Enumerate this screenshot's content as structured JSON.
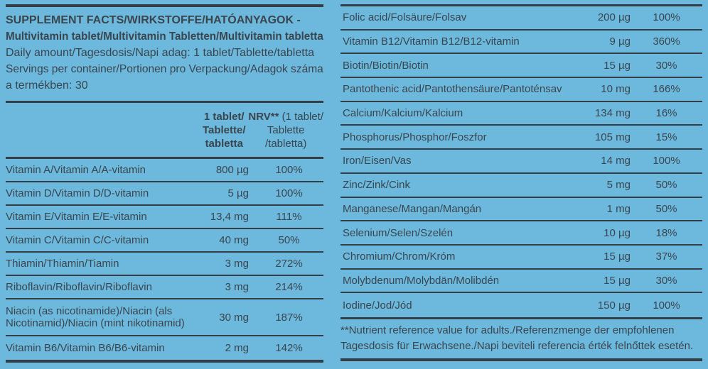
{
  "page": {
    "background_color": "#6db9dd",
    "ink_color": "#3a454e"
  },
  "header": {
    "lines": [
      {
        "text": "SUPPLEMENT FACTS/WIRKSTOFFE/HATÓANYAGOK -",
        "bold": true
      },
      {
        "text": "Multivitamin tablet/Multivitamin Tabletten/Multivitamin tabletta",
        "bold": true
      },
      {
        "text": "Daily amount/Tagesdosis/Napi adag: 1 tablet/Tablette/tabletta",
        "bold": false
      },
      {
        "text": "Servings per container/Portionen pro Verpackung/Adagok száma",
        "bold": false
      },
      {
        "text": "a termékben: 30",
        "bold": false
      }
    ]
  },
  "left_table": {
    "amount_header_lines": [
      "1 tablet/",
      "Tablette/",
      "tabletta"
    ],
    "nrv_header": {
      "bold_part": "NRV**",
      "line1_rest": " (1 tablet/",
      "line2": "Tablette",
      "line3": "/tabletta)"
    },
    "rows": [
      {
        "label": "Vitamin A/Vitamin A/A-vitamin",
        "amount": "800 µg",
        "nrv": "100%"
      },
      {
        "label": "Vitamin D/Vitamin D/D-vitamin",
        "amount": "5 µg",
        "nrv": "100%"
      },
      {
        "label": "Vitamin E/Vitamin E/E-vitamin",
        "amount": "13,4 mg",
        "nrv": "111%"
      },
      {
        "label": "Vitamin C/Vitamin C/C-vitamin",
        "amount": "40 mg",
        "nrv": "50%"
      },
      {
        "label": "Thiamin/Thiamin/Tiamin",
        "amount": "3 mg",
        "nrv": "272%"
      },
      {
        "label": "Riboflavin/Riboflavin/Riboflavin",
        "amount": "3 mg",
        "nrv": "214%"
      },
      {
        "label": "Niacin (as nicotinamide)/Niacin (als\nNicotinamid)/Niacin (mint nikotinamid)",
        "amount": "30 mg",
        "nrv": "187%"
      },
      {
        "label": "Vitamin B6/Vitamin B6/B6-vitamin",
        "amount": "2 mg",
        "nrv": "142%"
      }
    ]
  },
  "right_table": {
    "rows": [
      {
        "label": "Folic acid/Folsäure/Folsav",
        "amount": "200 µg",
        "nrv": "100%"
      },
      {
        "label": "Vitamin B12/Vitamin B12/B12-vitamin",
        "amount": "9 µg",
        "nrv": "360%"
      },
      {
        "label": "Biotin/Biotin/Biotin",
        "amount": "15 µg",
        "nrv": "30%"
      },
      {
        "label": "Pantothenic acid/Pantothensäure/Pantoténsav",
        "amount": "10 mg",
        "nrv": "166%"
      },
      {
        "label": "Calcium/Kalcium/Kalcium",
        "amount": "134 mg",
        "nrv": "16%"
      },
      {
        "label": "Phosphorus/Phosphor/Foszfor",
        "amount": "105 mg",
        "nrv": "15%"
      },
      {
        "label": "Iron/Eisen/Vas",
        "amount": "14 mg",
        "nrv": "100%"
      },
      {
        "label": "Zinc/Zink/Cink",
        "amount": "5 mg",
        "nrv": "50%"
      },
      {
        "label": "Manganese/Mangan/Mangán",
        "amount": "1 mg",
        "nrv": "50%"
      },
      {
        "label": "Selenium/Selen/Szelén",
        "amount": "10 µg",
        "nrv": "18%"
      },
      {
        "label": "Chromium/Chrom/Króm",
        "amount": "15 µg",
        "nrv": "37%"
      },
      {
        "label": "Molybdenum/Molybdän/Molibdén",
        "amount": "15 µg",
        "nrv": "30%"
      },
      {
        "label": "Iodine/Jod/Jód",
        "amount": "150 µg",
        "nrv": "100%"
      }
    ]
  },
  "footnote": {
    "lines": [
      "**Nutrient reference value for adults./Referenzmenge der empfohlenen",
      "Tagesdosis für Erwachsene./Napi beviteli referencia érték felnőttek esetén."
    ]
  }
}
